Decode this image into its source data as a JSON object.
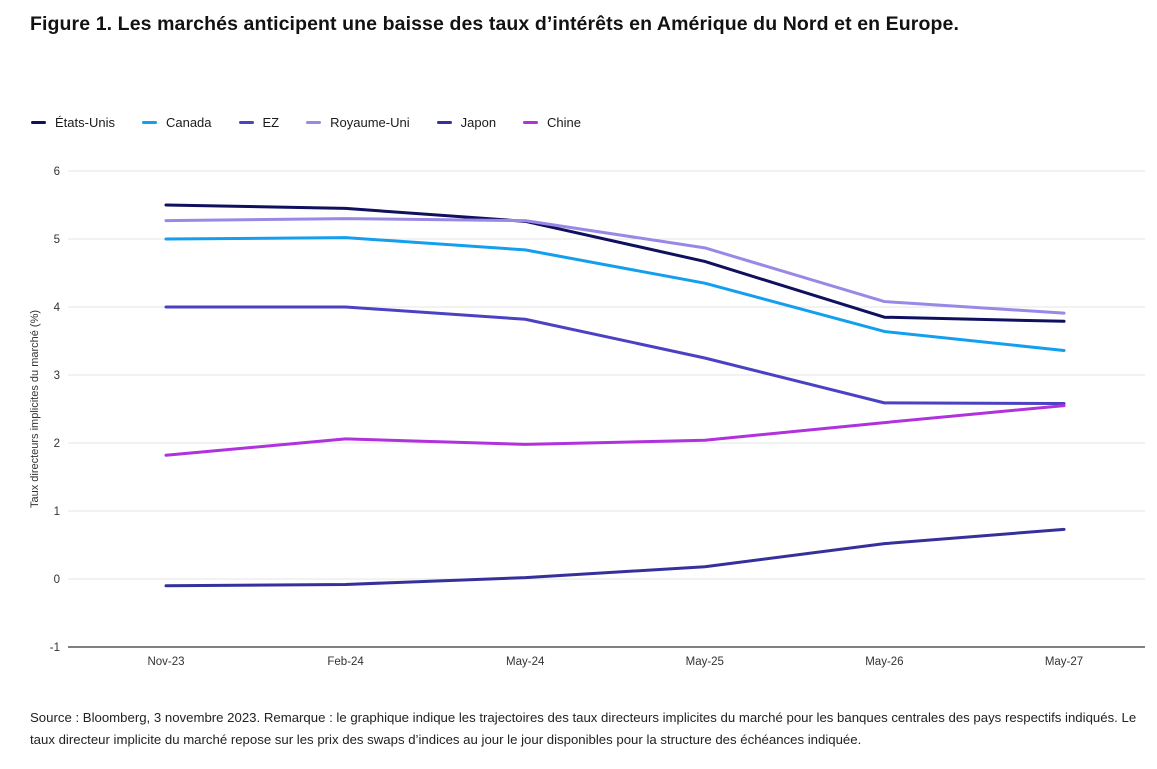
{
  "page": {
    "background": "#ffffff"
  },
  "title": "Figure 1. Les marchés anticipent une baisse des taux d’intérêts en Amérique du Nord et en Europe.",
  "footnote": "Source : Bloomberg, 3 novembre 2023. Remarque : le graphique indique les trajectoires des taux directeurs implicites du marché pour les banques centrales des pays respectifs indiqués. Le taux directeur implicite du marché repose sur les prix des swaps d’indices au jour le jour disponibles pour la structure des échéances indiquée.",
  "chart_data": {
    "type": "line",
    "title": "Figure 1. Les marchés anticipent une baisse des taux d’intérêts en Amérique du Nord et en Europe.",
    "x_categories": [
      "Nov-23",
      "Feb-24",
      "May-24",
      "May-25",
      "May-26",
      "May-27"
    ],
    "xlabel": "",
    "ylabel": "Taux directeurs implicites du marché (%)",
    "ylim": [
      -1,
      6
    ],
    "yticks": [
      6,
      5,
      4,
      3,
      2,
      1,
      0,
      -1
    ],
    "grid": "horizontal",
    "gridline_color": "#e4e4e4",
    "axis_line_color": "#000000",
    "tick_label_color": "#333333",
    "legend_position": "top-left",
    "series": [
      {
        "name": "États-Unis",
        "color": "#0f105e",
        "values": [
          5.5,
          5.45,
          5.26,
          4.67,
          3.85,
          3.79
        ]
      },
      {
        "name": "Canada",
        "color": "#149fee",
        "values": [
          5.0,
          5.02,
          4.84,
          4.35,
          3.64,
          3.36
        ]
      },
      {
        "name": "EZ",
        "color": "#4a42c3",
        "values": [
          4.0,
          4.0,
          3.82,
          3.25,
          2.59,
          2.58
        ]
      },
      {
        "name": "Royaume-Uni",
        "color": "#9889e6",
        "values": [
          5.27,
          5.3,
          5.27,
          4.87,
          4.08,
          3.91
        ]
      },
      {
        "name": "Japon",
        "color": "#35309b",
        "values": [
          -0.1,
          -0.08,
          0.02,
          0.18,
          0.52,
          0.73
        ]
      },
      {
        "name": "Chine",
        "color": "#b032dc",
        "values": [
          1.82,
          2.06,
          1.98,
          2.04,
          2.3,
          2.55
        ]
      }
    ]
  }
}
